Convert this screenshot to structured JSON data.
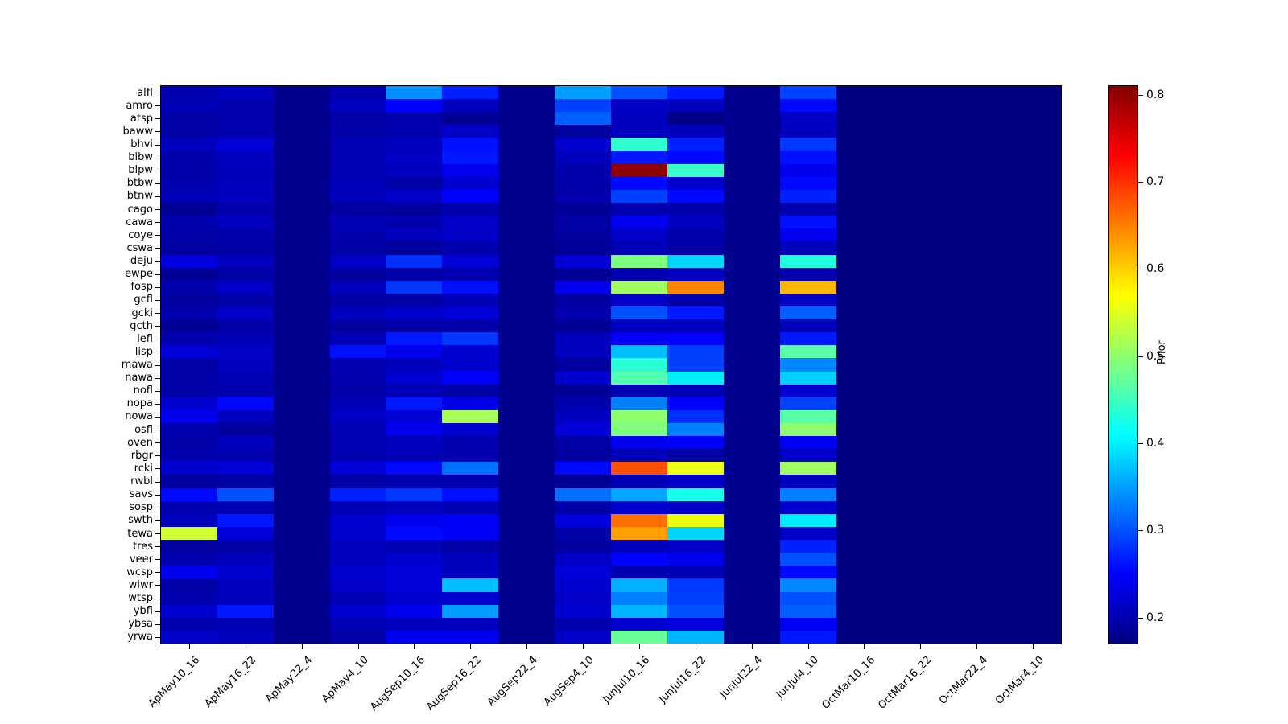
{
  "figure": {
    "background": "#ffffff"
  },
  "chart_data": {
    "type": "heatmap",
    "title": "",
    "xlabel": "",
    "ylabel": "",
    "colormap": "jet",
    "grid": false,
    "x_tick_rotation_deg": 45,
    "colorbar": {
      "label": "Prior",
      "ticks": [
        0.2,
        0.3,
        0.4,
        0.5,
        0.6,
        0.7,
        0.8
      ],
      "vmin": 0.17,
      "vmax": 0.81,
      "position": "right"
    },
    "x_categories": [
      "ApMay10_16",
      "ApMay16_22",
      "ApMay22_4",
      "ApMay4_10",
      "AugSep10_16",
      "AugSep16_22",
      "AugSep22_4",
      "AugSep4_10",
      "JunJul10_16",
      "JunJul16_22",
      "JunJul22_4",
      "JunJul4_10",
      "OctMar10_16",
      "OctMar16_22",
      "OctMar22_4",
      "OctMar4_10"
    ],
    "y_categories": [
      "alfl",
      "amro",
      "atsp",
      "baww",
      "bhvi",
      "blbw",
      "blpw",
      "btbw",
      "btnw",
      "cago",
      "cawa",
      "coye",
      "cswa",
      "deju",
      "ewpe",
      "fosp",
      "gcfl",
      "gcki",
      "gcth",
      "lefl",
      "lisp",
      "mawa",
      "nawa",
      "nofl",
      "nopa",
      "nowa",
      "osfl",
      "oven",
      "rbgr",
      "rcki",
      "rwbl",
      "savs",
      "sosp",
      "swth",
      "tewa",
      "tres",
      "veer",
      "wcsp",
      "wiwr",
      "wtsp",
      "ybfl",
      "ybsa",
      "yrwa"
    ],
    "values": [
      [
        0.2,
        0.21,
        0.18,
        0.2,
        0.34,
        0.27,
        0.18,
        0.35,
        0.3,
        0.265,
        0.18,
        0.29,
        0.17,
        0.17,
        0.17,
        0.17
      ],
      [
        0.205,
        0.2,
        0.18,
        0.21,
        0.25,
        0.21,
        0.18,
        0.29,
        0.215,
        0.21,
        0.18,
        0.255,
        0.17,
        0.17,
        0.17,
        0.17
      ],
      [
        0.195,
        0.2,
        0.18,
        0.195,
        0.2,
        0.185,
        0.18,
        0.31,
        0.21,
        0.175,
        0.18,
        0.215,
        0.17,
        0.17,
        0.17,
        0.17
      ],
      [
        0.195,
        0.2,
        0.18,
        0.195,
        0.2,
        0.215,
        0.18,
        0.19,
        0.21,
        0.21,
        0.18,
        0.21,
        0.17,
        0.17,
        0.17,
        0.17
      ],
      [
        0.21,
        0.225,
        0.18,
        0.205,
        0.21,
        0.26,
        0.18,
        0.22,
        0.44,
        0.27,
        0.18,
        0.285,
        0.17,
        0.17,
        0.17,
        0.17
      ],
      [
        0.2,
        0.21,
        0.18,
        0.205,
        0.215,
        0.265,
        0.18,
        0.21,
        0.265,
        0.255,
        0.18,
        0.26,
        0.17,
        0.17,
        0.17,
        0.17
      ],
      [
        0.195,
        0.205,
        0.18,
        0.205,
        0.21,
        0.24,
        0.18,
        0.2,
        0.8,
        0.445,
        0.18,
        0.24,
        0.17,
        0.17,
        0.17,
        0.17
      ],
      [
        0.2,
        0.21,
        0.18,
        0.205,
        0.195,
        0.22,
        0.18,
        0.195,
        0.255,
        0.22,
        0.18,
        0.255,
        0.17,
        0.17,
        0.17,
        0.17
      ],
      [
        0.205,
        0.21,
        0.18,
        0.21,
        0.215,
        0.25,
        0.18,
        0.2,
        0.29,
        0.255,
        0.18,
        0.27,
        0.17,
        0.17,
        0.17,
        0.17
      ],
      [
        0.185,
        0.2,
        0.18,
        0.19,
        0.19,
        0.2,
        0.18,
        0.185,
        0.2,
        0.2,
        0.18,
        0.2,
        0.17,
        0.17,
        0.17,
        0.17
      ],
      [
        0.2,
        0.21,
        0.18,
        0.205,
        0.2,
        0.215,
        0.18,
        0.195,
        0.24,
        0.21,
        0.18,
        0.26,
        0.17,
        0.17,
        0.17,
        0.17
      ],
      [
        0.195,
        0.2,
        0.18,
        0.2,
        0.21,
        0.215,
        0.18,
        0.19,
        0.215,
        0.2,
        0.18,
        0.24,
        0.17,
        0.17,
        0.17,
        0.17
      ],
      [
        0.19,
        0.195,
        0.18,
        0.195,
        0.19,
        0.2,
        0.18,
        0.185,
        0.205,
        0.195,
        0.18,
        0.21,
        0.17,
        0.17,
        0.17,
        0.17
      ],
      [
        0.23,
        0.21,
        0.18,
        0.215,
        0.28,
        0.225,
        0.18,
        0.225,
        0.49,
        0.385,
        0.18,
        0.43,
        0.17,
        0.17,
        0.17,
        0.17
      ],
      [
        0.185,
        0.195,
        0.18,
        0.19,
        0.195,
        0.2,
        0.18,
        0.185,
        0.2,
        0.21,
        0.18,
        0.2,
        0.17,
        0.17,
        0.17,
        0.17
      ],
      [
        0.2,
        0.215,
        0.18,
        0.21,
        0.285,
        0.26,
        0.18,
        0.24,
        0.51,
        0.645,
        0.18,
        0.615,
        0.17,
        0.17,
        0.17,
        0.17
      ],
      [
        0.19,
        0.195,
        0.18,
        0.195,
        0.195,
        0.205,
        0.18,
        0.19,
        0.215,
        0.2,
        0.18,
        0.215,
        0.17,
        0.17,
        0.17,
        0.17
      ],
      [
        0.2,
        0.215,
        0.18,
        0.21,
        0.22,
        0.225,
        0.18,
        0.2,
        0.3,
        0.265,
        0.18,
        0.31,
        0.17,
        0.17,
        0.17,
        0.17
      ],
      [
        0.185,
        0.195,
        0.18,
        0.19,
        0.195,
        0.195,
        0.18,
        0.185,
        0.21,
        0.21,
        0.18,
        0.205,
        0.17,
        0.17,
        0.17,
        0.17
      ],
      [
        0.2,
        0.205,
        0.18,
        0.205,
        0.265,
        0.285,
        0.18,
        0.21,
        0.25,
        0.25,
        0.18,
        0.265,
        0.17,
        0.17,
        0.17,
        0.17
      ],
      [
        0.225,
        0.215,
        0.18,
        0.26,
        0.24,
        0.22,
        0.18,
        0.21,
        0.37,
        0.29,
        0.18,
        0.465,
        0.17,
        0.17,
        0.17,
        0.17
      ],
      [
        0.195,
        0.21,
        0.18,
        0.2,
        0.21,
        0.22,
        0.18,
        0.19,
        0.435,
        0.29,
        0.18,
        0.335,
        0.17,
        0.17,
        0.17,
        0.17
      ],
      [
        0.195,
        0.205,
        0.18,
        0.2,
        0.22,
        0.25,
        0.18,
        0.22,
        0.46,
        0.4,
        0.18,
        0.38,
        0.17,
        0.17,
        0.17,
        0.17
      ],
      [
        0.195,
        0.2,
        0.18,
        0.195,
        0.205,
        0.195,
        0.18,
        0.185,
        0.205,
        0.205,
        0.18,
        0.22,
        0.17,
        0.17,
        0.17,
        0.17
      ],
      [
        0.22,
        0.255,
        0.18,
        0.205,
        0.265,
        0.24,
        0.18,
        0.2,
        0.33,
        0.25,
        0.18,
        0.29,
        0.17,
        0.17,
        0.17,
        0.17
      ],
      [
        0.24,
        0.21,
        0.18,
        0.215,
        0.225,
        0.515,
        0.18,
        0.21,
        0.5,
        0.28,
        0.18,
        0.465,
        0.17,
        0.17,
        0.17,
        0.17
      ],
      [
        0.2,
        0.19,
        0.18,
        0.205,
        0.24,
        0.22,
        0.18,
        0.225,
        0.49,
        0.33,
        0.18,
        0.5,
        0.17,
        0.17,
        0.17,
        0.17
      ],
      [
        0.195,
        0.21,
        0.18,
        0.205,
        0.21,
        0.2,
        0.18,
        0.195,
        0.24,
        0.25,
        0.18,
        0.245,
        0.17,
        0.17,
        0.17,
        0.17
      ],
      [
        0.2,
        0.2,
        0.18,
        0.2,
        0.205,
        0.2,
        0.18,
        0.19,
        0.205,
        0.195,
        0.18,
        0.215,
        0.17,
        0.17,
        0.17,
        0.17
      ],
      [
        0.22,
        0.225,
        0.18,
        0.225,
        0.255,
        0.32,
        0.18,
        0.255,
        0.68,
        0.56,
        0.18,
        0.51,
        0.17,
        0.17,
        0.17,
        0.17
      ],
      [
        0.19,
        0.195,
        0.18,
        0.195,
        0.2,
        0.2,
        0.18,
        0.185,
        0.205,
        0.215,
        0.18,
        0.21,
        0.17,
        0.17,
        0.17,
        0.17
      ],
      [
        0.255,
        0.3,
        0.18,
        0.27,
        0.285,
        0.26,
        0.18,
        0.32,
        0.355,
        0.425,
        0.18,
        0.33,
        0.17,
        0.17,
        0.17,
        0.17
      ],
      [
        0.2,
        0.205,
        0.18,
        0.205,
        0.21,
        0.205,
        0.18,
        0.195,
        0.22,
        0.215,
        0.18,
        0.22,
        0.17,
        0.17,
        0.17,
        0.17
      ],
      [
        0.21,
        0.265,
        0.18,
        0.22,
        0.24,
        0.245,
        0.18,
        0.23,
        0.66,
        0.56,
        0.18,
        0.4,
        0.17,
        0.17,
        0.17,
        0.17
      ],
      [
        0.54,
        0.225,
        0.18,
        0.22,
        0.255,
        0.245,
        0.18,
        0.195,
        0.63,
        0.385,
        0.18,
        0.215,
        0.17,
        0.17,
        0.17,
        0.17
      ],
      [
        0.19,
        0.195,
        0.18,
        0.21,
        0.205,
        0.195,
        0.18,
        0.19,
        0.21,
        0.215,
        0.18,
        0.27,
        0.17,
        0.17,
        0.17,
        0.17
      ],
      [
        0.2,
        0.21,
        0.18,
        0.21,
        0.22,
        0.21,
        0.18,
        0.215,
        0.25,
        0.24,
        0.18,
        0.3,
        0.17,
        0.17,
        0.17,
        0.17
      ],
      [
        0.24,
        0.22,
        0.18,
        0.22,
        0.225,
        0.21,
        0.18,
        0.225,
        0.2,
        0.205,
        0.18,
        0.255,
        0.17,
        0.17,
        0.17,
        0.17
      ],
      [
        0.195,
        0.21,
        0.18,
        0.215,
        0.225,
        0.37,
        0.18,
        0.22,
        0.36,
        0.285,
        0.18,
        0.335,
        0.17,
        0.17,
        0.17,
        0.17
      ],
      [
        0.2,
        0.21,
        0.18,
        0.205,
        0.22,
        0.22,
        0.18,
        0.215,
        0.33,
        0.29,
        0.18,
        0.3,
        0.17,
        0.17,
        0.17,
        0.17
      ],
      [
        0.22,
        0.265,
        0.18,
        0.22,
        0.24,
        0.35,
        0.18,
        0.22,
        0.365,
        0.3,
        0.18,
        0.31,
        0.17,
        0.17,
        0.17,
        0.17
      ],
      [
        0.2,
        0.205,
        0.18,
        0.205,
        0.21,
        0.21,
        0.18,
        0.2,
        0.22,
        0.23,
        0.18,
        0.245,
        0.17,
        0.17,
        0.17,
        0.17
      ],
      [
        0.215,
        0.21,
        0.18,
        0.195,
        0.24,
        0.24,
        0.18,
        0.215,
        0.475,
        0.365,
        0.18,
        0.265,
        0.17,
        0.17,
        0.17,
        0.17
      ]
    ]
  }
}
